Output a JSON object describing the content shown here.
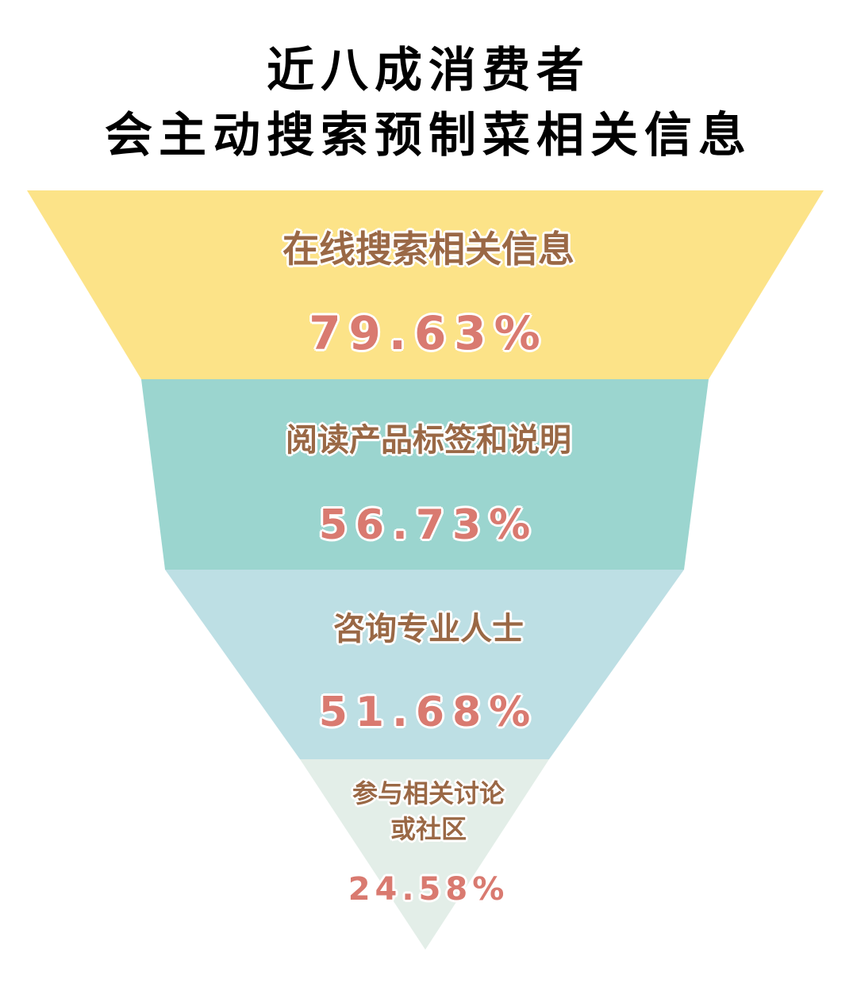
{
  "title_lines": [
    "近八成消费者",
    "会主动搜索预制菜相关信息"
  ],
  "chart_data": {
    "type": "funnel",
    "title": "近八成消费者会主动搜索预制菜相关信息",
    "unit": "%",
    "stages": [
      {
        "label": "在线搜索相关信息",
        "value": 79.63,
        "value_label": "79.63%",
        "color": "#fce388"
      },
      {
        "label": "阅读产品标签和说明",
        "value": 56.73,
        "value_label": "56.73%",
        "color": "#9bd5cf"
      },
      {
        "label": "咨询专业人士",
        "value": 51.68,
        "value_label": "51.68%",
        "color": "#bddfe4"
      },
      {
        "label": "参与相关讨论或社区",
        "label_lines": [
          "参与相关讨论",
          "或社区"
        ],
        "value": 24.58,
        "value_label": "24.58%",
        "color": "#e3eee8"
      }
    ]
  }
}
